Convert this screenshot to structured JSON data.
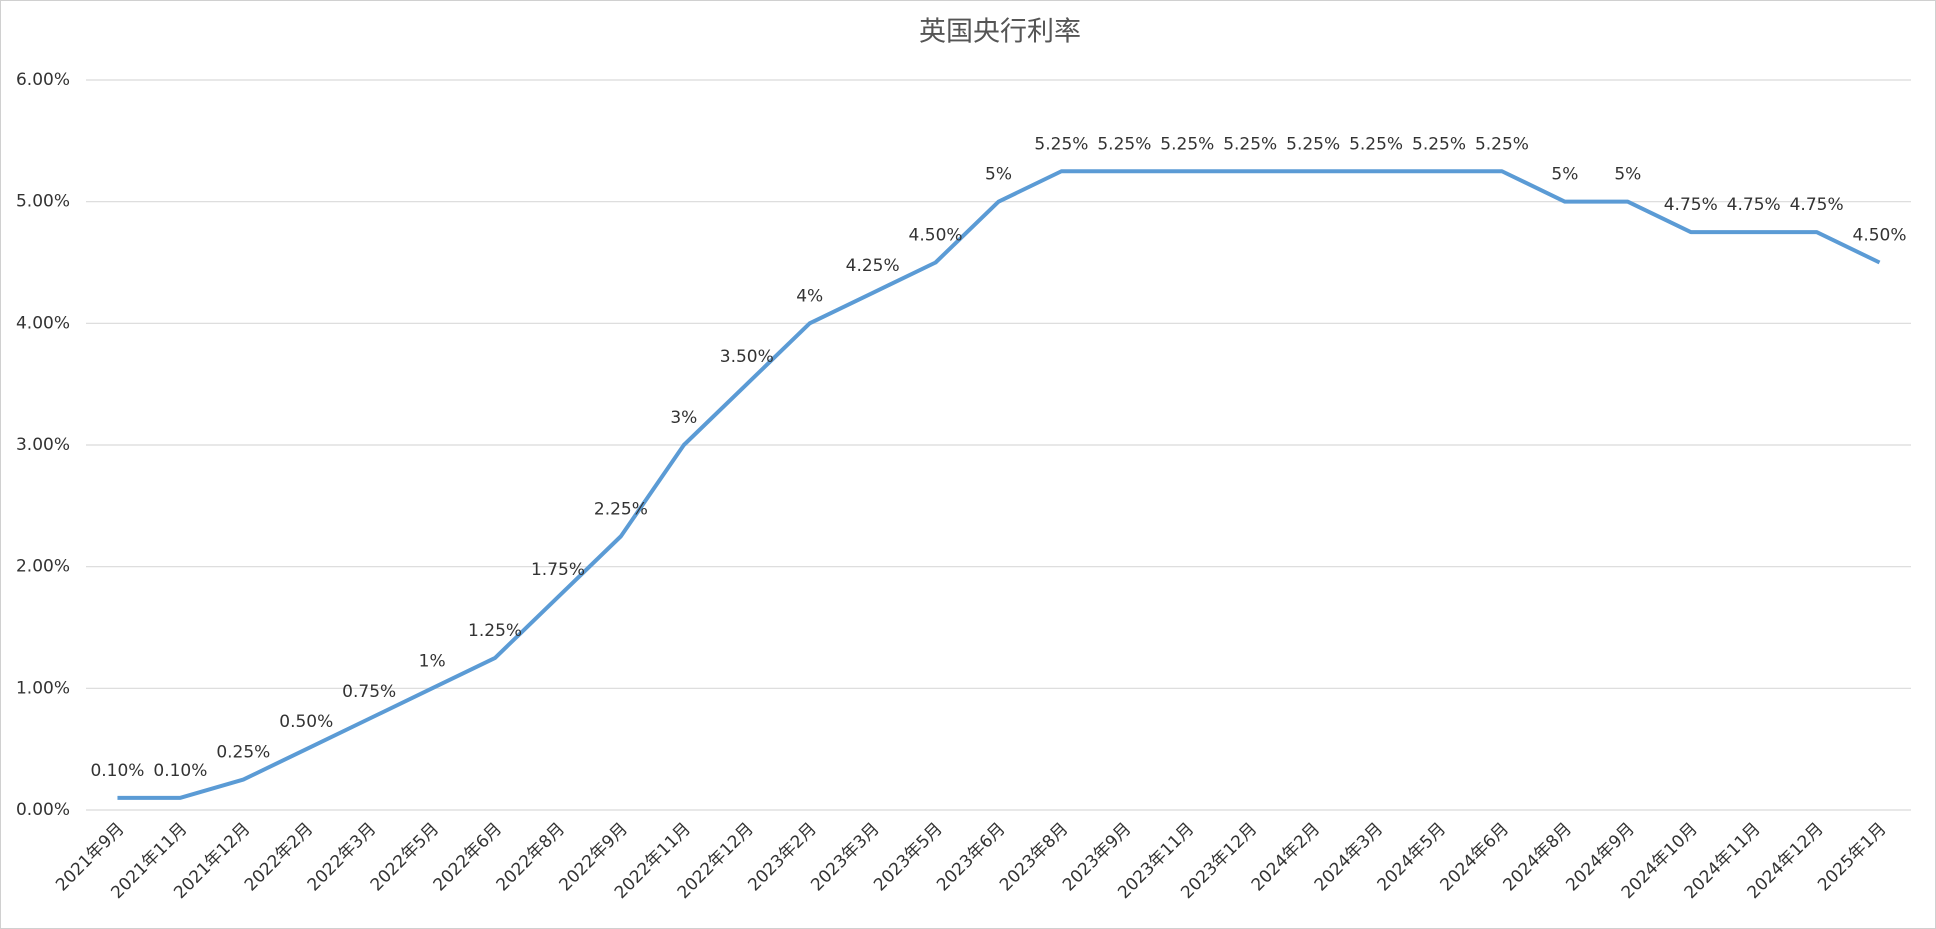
{
  "chart_data": {
    "type": "line",
    "title": "英国央行利率",
    "categories": [
      "2021年9月",
      "2021年11月",
      "2021年12月",
      "2022年2月",
      "2022年3月",
      "2022年5月",
      "2022年6月",
      "2022年8月",
      "2022年9月",
      "2022年11月",
      "2022年12月",
      "2023年2月",
      "2023年3月",
      "2023年5月",
      "2023年6月",
      "2023年8月",
      "2023年9月",
      "2023年11月",
      "2023年12月",
      "2024年2月",
      "2024年3月",
      "2024年5月",
      "2024年6月",
      "2024年8月",
      "2024年9月",
      "2024年10月",
      "2024年11月",
      "2024年12月",
      "2025年1月"
    ],
    "values": [
      0.1,
      0.1,
      0.25,
      0.5,
      0.75,
      1,
      1.25,
      1.75,
      2.25,
      3,
      3.5,
      4,
      4.25,
      4.5,
      5,
      5.25,
      5.25,
      5.25,
      5.25,
      5.25,
      5.25,
      5.25,
      5.25,
      5,
      5,
      4.75,
      4.75,
      4.75,
      4.5
    ],
    "value_labels": [
      "0.10%",
      "0.10%",
      "0.25%",
      "0.50%",
      "0.75%",
      "1%",
      "1.25%",
      "1.75%",
      "2.25%",
      "3%",
      "3.50%",
      "4%",
      "4.25%",
      "4.50%",
      "5%",
      "5.25%",
      "5.25%",
      "5.25%",
      "5.25%",
      "5.25%",
      "5.25%",
      "5.25%",
      "5.25%",
      "5%",
      "5%",
      "4.75%",
      "4.75%",
      "4.75%",
      "4.50%"
    ],
    "color": "#5b9bd5",
    "ylim": [
      0,
      6
    ],
    "yticks": [
      {
        "value": 0,
        "label": "0.00%"
      },
      {
        "value": 1,
        "label": "1.00%"
      },
      {
        "value": 2,
        "label": "2.00%"
      },
      {
        "value": 3,
        "label": "3.00%"
      },
      {
        "value": 4,
        "label": "4.00%"
      },
      {
        "value": 5,
        "label": "5.00%"
      },
      {
        "value": 6,
        "label": "6.00%"
      }
    ],
    "grid": true
  }
}
